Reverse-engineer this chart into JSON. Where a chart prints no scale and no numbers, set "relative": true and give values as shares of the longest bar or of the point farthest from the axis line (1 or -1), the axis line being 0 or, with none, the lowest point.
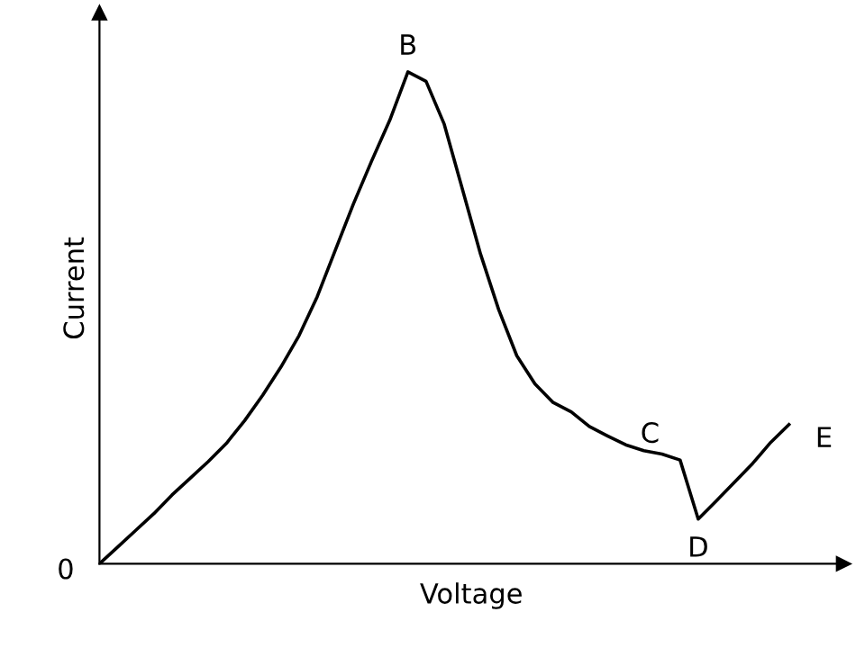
{
  "chart_data": {
    "type": "line",
    "relative": true,
    "xlabel": "Voltage",
    "ylabel": "Current",
    "color": "#000000",
    "legend": false,
    "marker": "none",
    "line_style": "solid",
    "categories": [
      null,
      null,
      null,
      null,
      null,
      null,
      null,
      null,
      null,
      null,
      null,
      null,
      null,
      null,
      null,
      null,
      null,
      null,
      null,
      null,
      null,
      null,
      null,
      null,
      null,
      null,
      null,
      null,
      null,
      null,
      null,
      null,
      null,
      null,
      null,
      null,
      null,
      null,
      null
    ],
    "values": [
      0,
      0.034,
      0.068,
      0.102,
      0.14,
      0.174,
      0.208,
      0.245,
      0.291,
      0.343,
      0.4,
      0.464,
      0.543,
      0.638,
      0.732,
      0.819,
      0.902,
      1,
      0.981,
      0.894,
      0.762,
      0.63,
      0.517,
      0.423,
      0.366,
      0.328,
      0.309,
      0.279,
      0.26,
      0.242,
      0.23,
      0.223,
      0.211,
      0.091,
      0.128,
      0.166,
      0.204,
      0.247,
      0.283
    ],
    "annotations": [
      "0",
      {
        "text": "B",
        "y": 1
      },
      {
        "text": "C",
        "y": 0.211
      },
      {
        "text": "D",
        "y": 0.091
      },
      "E"
    ]
  }
}
